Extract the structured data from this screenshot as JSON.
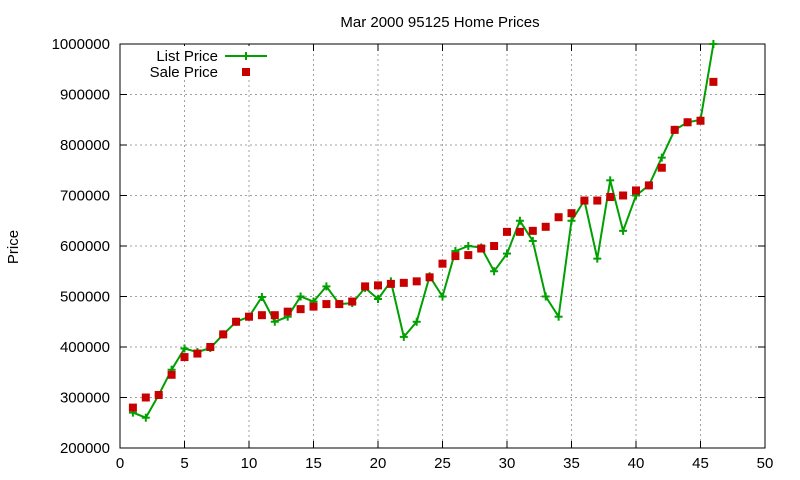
{
  "chart_data": {
    "type": "line",
    "title": "Mar 2000 95125 Home Prices",
    "xlabel": "",
    "ylabel": "Price",
    "xlim": [
      0,
      50
    ],
    "ylim": [
      200000,
      1000000
    ],
    "xticks": [
      0,
      5,
      10,
      15,
      20,
      25,
      30,
      35,
      40,
      45,
      50
    ],
    "yticks": [
      200000,
      300000,
      400000,
      500000,
      600000,
      700000,
      800000,
      900000,
      1000000
    ],
    "grid": true,
    "legend_position": "top-left",
    "series": [
      {
        "name": "List Price",
        "style": "line-with-plus-markers",
        "color": "#00a000",
        "points": [
          [
            1,
            270000
          ],
          [
            2,
            260000
          ],
          [
            3,
            305000
          ],
          [
            4,
            355000
          ],
          [
            5,
            397000
          ],
          [
            6,
            390000
          ],
          [
            7,
            398000
          ],
          [
            8,
            425000
          ],
          [
            9,
            450000
          ],
          [
            10,
            460000
          ],
          [
            11,
            499000
          ],
          [
            12,
            450000
          ],
          [
            13,
            460000
          ],
          [
            14,
            500000
          ],
          [
            15,
            490000
          ],
          [
            16,
            520000
          ],
          [
            17,
            485000
          ],
          [
            18,
            487000
          ],
          [
            19,
            517000
          ],
          [
            20,
            495000
          ],
          [
            21,
            530000
          ],
          [
            22,
            420000
          ],
          [
            23,
            450000
          ],
          [
            24,
            540000
          ],
          [
            25,
            500000
          ],
          [
            26,
            590000
          ],
          [
            27,
            600000
          ],
          [
            28,
            597000
          ],
          [
            29,
            550000
          ],
          [
            30,
            585000
          ],
          [
            31,
            650000
          ],
          [
            32,
            610000
          ],
          [
            33,
            500000
          ],
          [
            34,
            460000
          ],
          [
            35,
            650000
          ],
          [
            36,
            690000
          ],
          [
            37,
            575000
          ],
          [
            38,
            730000
          ],
          [
            39,
            630000
          ],
          [
            40,
            700000
          ],
          [
            41,
            720000
          ],
          [
            42,
            775000
          ],
          [
            43,
            830000
          ],
          [
            44,
            845000
          ],
          [
            45,
            850000
          ],
          [
            46,
            1000000
          ]
        ]
      },
      {
        "name": "Sale Price",
        "style": "square-markers",
        "color": "#c80000",
        "points": [
          [
            1,
            280000
          ],
          [
            2,
            300000
          ],
          [
            3,
            305000
          ],
          [
            4,
            345000
          ],
          [
            5,
            380000
          ],
          [
            6,
            387000
          ],
          [
            7,
            400000
          ],
          [
            8,
            425000
          ],
          [
            9,
            450000
          ],
          [
            10,
            460000
          ],
          [
            11,
            463000
          ],
          [
            12,
            463000
          ],
          [
            13,
            470000
          ],
          [
            14,
            475000
          ],
          [
            15,
            480000
          ],
          [
            16,
            485000
          ],
          [
            17,
            485000
          ],
          [
            18,
            490000
          ],
          [
            19,
            520000
          ],
          [
            20,
            522000
          ],
          [
            21,
            525000
          ],
          [
            22,
            527000
          ],
          [
            23,
            530000
          ],
          [
            24,
            538000
          ],
          [
            25,
            565000
          ],
          [
            26,
            580000
          ],
          [
            27,
            582000
          ],
          [
            28,
            595000
          ],
          [
            29,
            600000
          ],
          [
            30,
            628000
          ],
          [
            31,
            628000
          ],
          [
            32,
            630000
          ],
          [
            33,
            638000
          ],
          [
            34,
            657000
          ],
          [
            35,
            665000
          ],
          [
            36,
            690000
          ],
          [
            37,
            690000
          ],
          [
            38,
            697000
          ],
          [
            39,
            700000
          ],
          [
            40,
            710000
          ],
          [
            41,
            720000
          ],
          [
            42,
            755000
          ],
          [
            43,
            830000
          ],
          [
            44,
            845000
          ],
          [
            45,
            848000
          ],
          [
            46,
            925000
          ]
        ]
      }
    ]
  }
}
